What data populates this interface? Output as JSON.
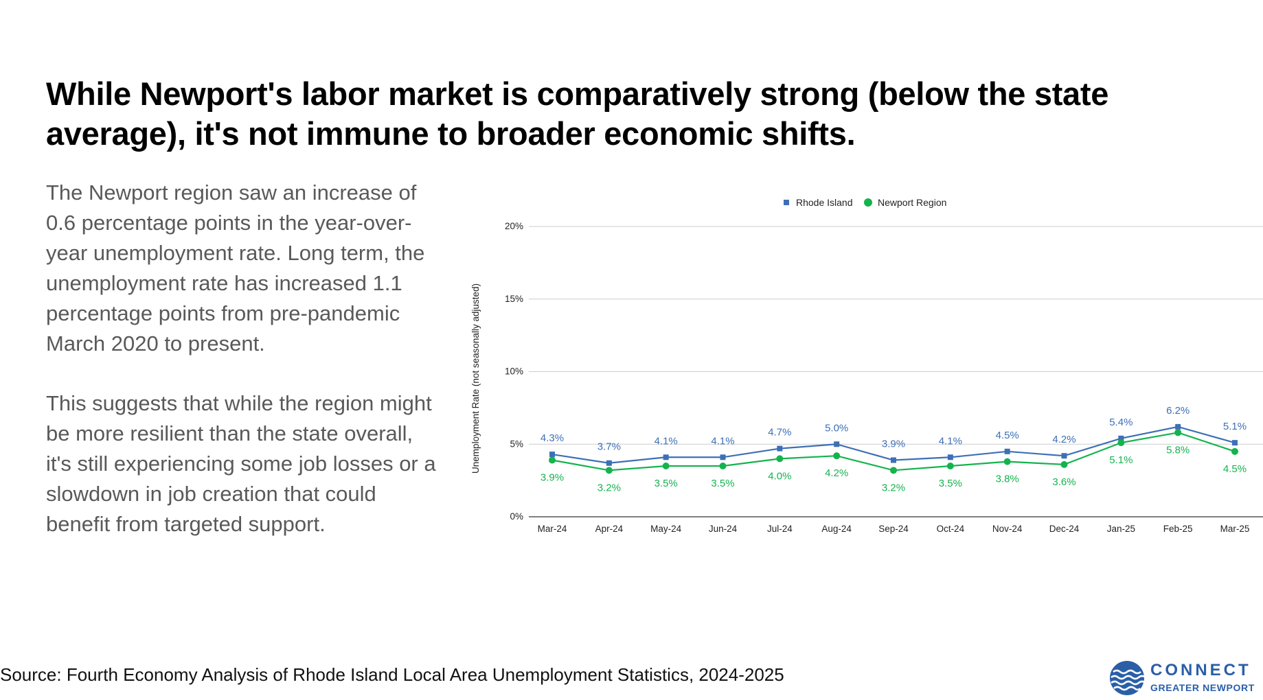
{
  "headline": "While Newport's labor market is comparatively strong (below the state average), it's not immune to broader economic shifts.",
  "paragraphs": [
    "The Newport region saw an increase of 0.6 percentage points in the year-over-year unemployment rate. Long term, the unemployment rate has increased 1.1 percentage points from pre-pandemic March 2020 to present.",
    "This suggests that while the region might be more resilient than the state overall, it's still experiencing some job losses or a slowdown in job creation that could benefit from targeted support."
  ],
  "source": "Source: Fourth Economy Analysis of Rhode Island Local Area Unemployment Statistics, 2024-2025",
  "logo": {
    "line1": "CONNECT",
    "line2": "GREATER NEWPORT",
    "icon": "waves-logo-icon"
  },
  "colors": {
    "rhode_island": "#3d6fb6",
    "newport": "#14b34e",
    "logo": "#2a5fa8"
  },
  "chart_data": {
    "type": "line",
    "title": "",
    "xlabel": "",
    "ylabel": "Unemployment Rate (not seasonally adjusted)",
    "categories": [
      "Mar-24",
      "Apr-24",
      "May-24",
      "Jun-24",
      "Jul-24",
      "Aug-24",
      "Sep-24",
      "Oct-24",
      "Nov-24",
      "Dec-24",
      "Jan-25",
      "Feb-25",
      "Mar-25"
    ],
    "ylim": [
      0,
      20
    ],
    "yticks": [
      0,
      5,
      10,
      15,
      20
    ],
    "ytick_labels": [
      "0%",
      "5%",
      "10%",
      "15%",
      "20%"
    ],
    "grid": true,
    "legend_position": "top",
    "series": [
      {
        "name": "Rhode Island",
        "marker": "square",
        "color": "#3d6fb6",
        "label_position": "above",
        "values": [
          4.3,
          3.7,
          4.1,
          4.1,
          4.7,
          5.0,
          3.9,
          4.1,
          4.5,
          4.2,
          5.4,
          6.2,
          5.1
        ],
        "labels": [
          "4.3%",
          "3.7%",
          "4.1%",
          "4.1%",
          "4.7%",
          "5.0%",
          "3.9%",
          "4.1%",
          "4.5%",
          "4.2%",
          "5.4%",
          "6.2%",
          "5.1%"
        ]
      },
      {
        "name": "Newport Region",
        "marker": "circle",
        "color": "#14b34e",
        "label_position": "below",
        "values": [
          3.9,
          3.2,
          3.5,
          3.5,
          4.0,
          4.2,
          3.2,
          3.5,
          3.8,
          3.6,
          5.1,
          5.8,
          4.5
        ],
        "labels": [
          "3.9%",
          "3.2%",
          "3.5%",
          "3.5%",
          "4.0%",
          "4.2%",
          "3.2%",
          "3.5%",
          "3.8%",
          "3.6%",
          "5.1%",
          "5.8%",
          "4.5%"
        ]
      }
    ]
  }
}
